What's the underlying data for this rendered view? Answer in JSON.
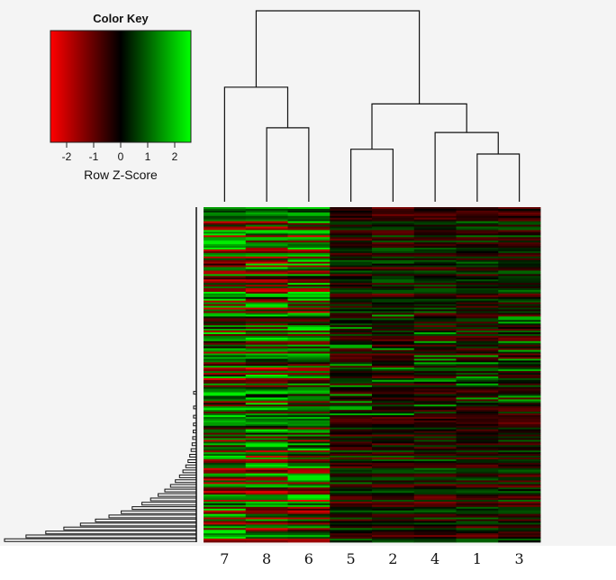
{
  "chart_data": {
    "type": "heatmap",
    "title": "",
    "color_key": {
      "title": "Color Key",
      "xlabel": "Row Z-Score",
      "range": [
        -2.6,
        2.6
      ],
      "ticks": [
        "-2",
        "-1",
        "0",
        "1",
        "2"
      ],
      "tick_values": [
        -2,
        -1,
        0,
        1,
        2
      ],
      "colors": {
        "low": "#ff0000",
        "mid": "#000000",
        "high": "#00ff00"
      }
    },
    "column_order": [
      "7",
      "8",
      "6",
      "5",
      "2",
      "4",
      "1",
      "3"
    ],
    "column_dendrogram": {
      "merges": [
        {
          "a": "1",
          "b": "3",
          "height": 1.0
        },
        {
          "a": "5",
          "b": "2",
          "height": 1.1
        },
        {
          "a": "8",
          "b": "6",
          "height": 1.55
        },
        {
          "a": "4",
          "b": "(1,3)",
          "height": 1.45
        },
        {
          "a": "(5,2)",
          "b": "(4,(1,3))",
          "height": 2.05
        },
        {
          "a": "7",
          "b": "(8,6)",
          "height": 2.4
        },
        {
          "a": "(7,(8,6))",
          "b": "((5,2),(4,(1,3)))",
          "height": 4.0
        }
      ]
    },
    "row_dendrogram": true,
    "rows_estimated": 190,
    "grid": false,
    "legend": "top-left"
  }
}
